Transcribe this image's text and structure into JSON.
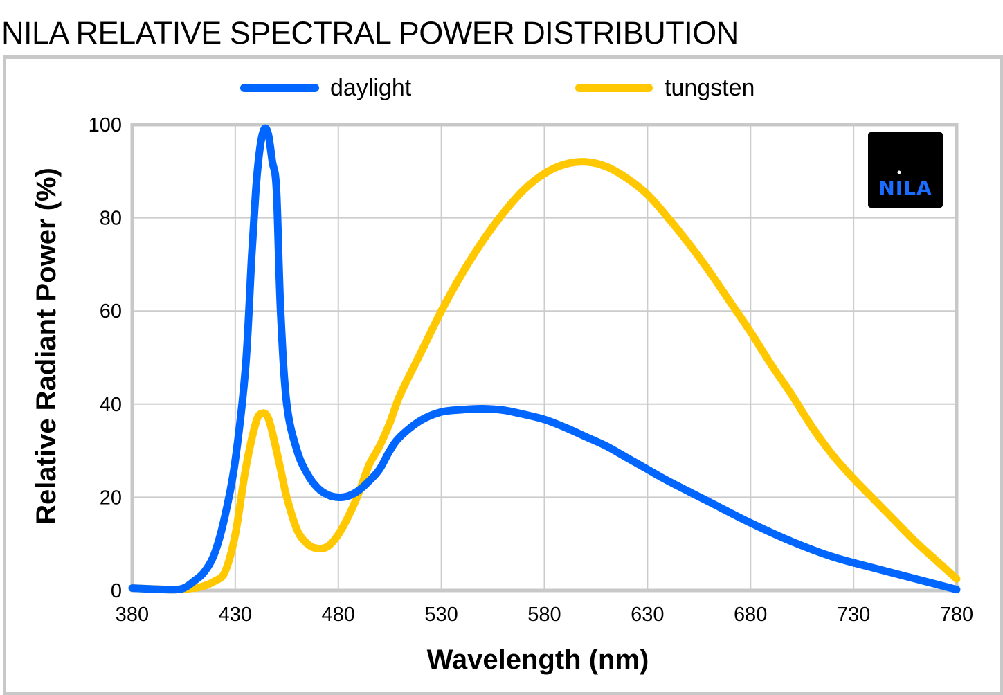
{
  "title": "NILA RELATIVE SPECTRAL POWER DISTRIBUTION",
  "logo": {
    "text": "NILA",
    "color": "#1a6dff",
    "background": "#000000"
  },
  "colors": {
    "daylight": "#0066ff",
    "tungsten": "#ffc800",
    "grid": "#cccccc",
    "frame": "#c8c8c8"
  },
  "chart_data": {
    "type": "line",
    "title": "NILA RELATIVE SPECTRAL POWER DISTRIBUTION",
    "xlabel": "Wavelength (nm)",
    "ylabel": "Relative Radiant Power (%)",
    "xlim": [
      380,
      780
    ],
    "ylim": [
      0,
      100
    ],
    "xticks": [
      380,
      430,
      480,
      530,
      580,
      630,
      680,
      730,
      780
    ],
    "yticks": [
      0,
      20,
      40,
      60,
      80,
      100
    ],
    "grid": true,
    "legend": "top",
    "series": [
      {
        "name": "daylight",
        "x": [
          380,
          390,
          400,
          405,
          410,
          415,
          420,
          425,
          430,
          435,
          438,
          440,
          442,
          444,
          446,
          448,
          450,
          452,
          455,
          460,
          465,
          470,
          475,
          480,
          485,
          490,
          495,
          500,
          505,
          510,
          520,
          530,
          540,
          550,
          560,
          570,
          580,
          590,
          600,
          610,
          620,
          630,
          640,
          660,
          680,
          700,
          720,
          740,
          760,
          780
        ],
        "y": [
          0.5,
          0.3,
          0.2,
          0.5,
          2,
          4,
          8,
          16,
          28,
          48,
          72,
          86,
          95,
          99,
          98,
          92,
          86,
          60,
          40,
          30,
          25,
          22,
          20.5,
          20,
          20.3,
          21.5,
          23.5,
          26,
          30,
          33,
          36.5,
          38.3,
          38.8,
          39,
          38.7,
          37.8,
          36.7,
          35,
          33,
          31,
          28.5,
          26,
          23.5,
          19,
          14.5,
          10.5,
          7.2,
          4.8,
          2.5,
          0.2
        ]
      },
      {
        "name": "tungsten",
        "x": [
          380,
          400,
          410,
          415,
          420,
          425,
          430,
          435,
          440,
          443,
          446,
          449,
          452,
          455,
          460,
          465,
          470,
          475,
          480,
          485,
          490,
          495,
          500,
          505,
          510,
          520,
          530,
          540,
          550,
          560,
          570,
          580,
          590,
          600,
          610,
          620,
          630,
          640,
          650,
          660,
          670,
          680,
          690,
          700,
          710,
          720,
          730,
          740,
          750,
          760,
          770,
          780
        ],
        "y": [
          0.5,
          0.2,
          0.5,
          1,
          2,
          4,
          12,
          26,
          36,
          38,
          37,
          32,
          26,
          20,
          13,
          10,
          9,
          9.5,
          12,
          16,
          21,
          27,
          31,
          36,
          42,
          51,
          60,
          68,
          75,
          81,
          86,
          89.5,
          91.5,
          92,
          91,
          88.5,
          85,
          80,
          74.5,
          68.5,
          62,
          55.5,
          48.5,
          42,
          35,
          29,
          24,
          19.5,
          15,
          10.5,
          6.5,
          2.5
        ]
      }
    ]
  }
}
